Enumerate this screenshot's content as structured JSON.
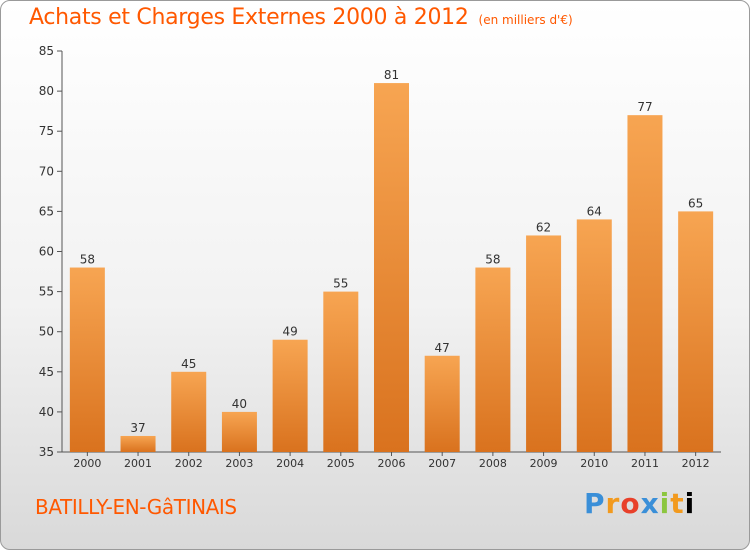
{
  "header": {
    "title": "Achats et Charges Externes 2000 à 2012",
    "subtitle": "(en milliers d'€)"
  },
  "footer": {
    "place": "BATILLY-EN-GâTINAIS",
    "brand": "Proxiti"
  },
  "colors": {
    "accent": "#ff5800",
    "bar_top": "#f7a552",
    "bar_bottom": "#d9721e"
  },
  "chart_data": {
    "type": "bar",
    "categories": [
      "2000",
      "2001",
      "2002",
      "2003",
      "2004",
      "2005",
      "2006",
      "2007",
      "2008",
      "2009",
      "2010",
      "2011",
      "2012"
    ],
    "values": [
      58,
      37,
      45,
      40,
      49,
      55,
      81,
      47,
      58,
      62,
      64,
      77,
      65
    ],
    "ylim": [
      35,
      85
    ],
    "yticks": [
      35,
      40,
      45,
      50,
      55,
      60,
      65,
      70,
      75,
      80,
      85
    ],
    "grid": false,
    "data_labels": true
  }
}
